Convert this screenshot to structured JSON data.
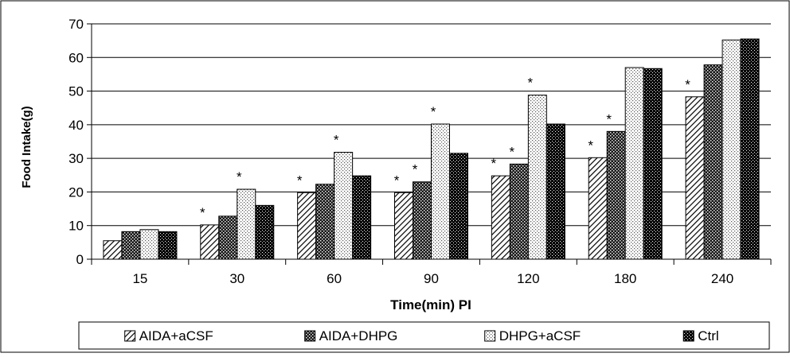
{
  "chart_data": {
    "type": "bar",
    "title": "",
    "xlabel": "Time(min) PI",
    "ylabel": "Food Intake(g)",
    "ylim": [
      0,
      70
    ],
    "y_ticks": [
      0,
      10,
      20,
      30,
      40,
      50,
      60,
      70
    ],
    "grid": true,
    "legend_position": "bottom",
    "categories": [
      "15",
      "30",
      "60",
      "90",
      "120",
      "180",
      "240"
    ],
    "series": [
      {
        "name": "AIDA+aCSF",
        "pattern": "diagonal-hatch",
        "values": [
          5.5,
          10.2,
          19.8,
          19.8,
          24.8,
          30.2,
          48.3
        ]
      },
      {
        "name": "AIDA+DHPG",
        "pattern": "dark-checker",
        "values": [
          8.2,
          12.8,
          22.3,
          23.0,
          28.3,
          38.0,
          57.8
        ]
      },
      {
        "name": "DHPG+aCSF",
        "pattern": "light-dotted",
        "values": [
          8.8,
          20.8,
          31.8,
          40.2,
          48.8,
          57.0,
          65.2
        ]
      },
      {
        "name": "Ctrl",
        "pattern": "black-dotted",
        "values": [
          8.2,
          16.0,
          24.8,
          31.5,
          40.2,
          56.7,
          65.5
        ]
      }
    ],
    "annotations": {
      "symbol": "*",
      "marks": [
        {
          "category": "30",
          "series": "AIDA+aCSF"
        },
        {
          "category": "30",
          "series": "DHPG+aCSF"
        },
        {
          "category": "60",
          "series": "AIDA+aCSF"
        },
        {
          "category": "60",
          "series": "DHPG+aCSF"
        },
        {
          "category": "90",
          "series": "AIDA+aCSF"
        },
        {
          "category": "90",
          "series": "AIDA+DHPG"
        },
        {
          "category": "90",
          "series": "DHPG+aCSF"
        },
        {
          "category": "120",
          "series": "AIDA+aCSF"
        },
        {
          "category": "120",
          "series": "AIDA+DHPG"
        },
        {
          "category": "120",
          "series": "DHPG+aCSF"
        },
        {
          "category": "180",
          "series": "AIDA+aCSF"
        },
        {
          "category": "180",
          "series": "AIDA+DHPG"
        },
        {
          "category": "240",
          "series": "AIDA+aCSF"
        }
      ]
    }
  }
}
